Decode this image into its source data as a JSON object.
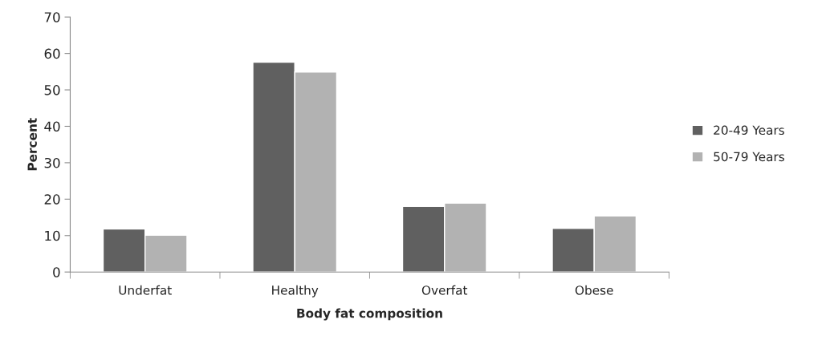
{
  "chart_data": {
    "type": "bar",
    "xlabel": "Body fat composition",
    "ylabel": "Percent",
    "categories": [
      "Underfat",
      "Healthy",
      "Overfat",
      "Obese"
    ],
    "series": [
      {
        "name": "20-49 Years",
        "color": "#606060",
        "values": [
          11.8,
          57.6,
          18.0,
          12.0
        ]
      },
      {
        "name": "50-79 Years",
        "color": "#b2b2b2",
        "values": [
          10.1,
          54.9,
          18.9,
          15.4
        ]
      }
    ],
    "ylim": [
      0,
      70
    ],
    "yticks": [
      0,
      10,
      20,
      30,
      40,
      50,
      60,
      70
    ],
    "grid": false,
    "legend": "right"
  }
}
